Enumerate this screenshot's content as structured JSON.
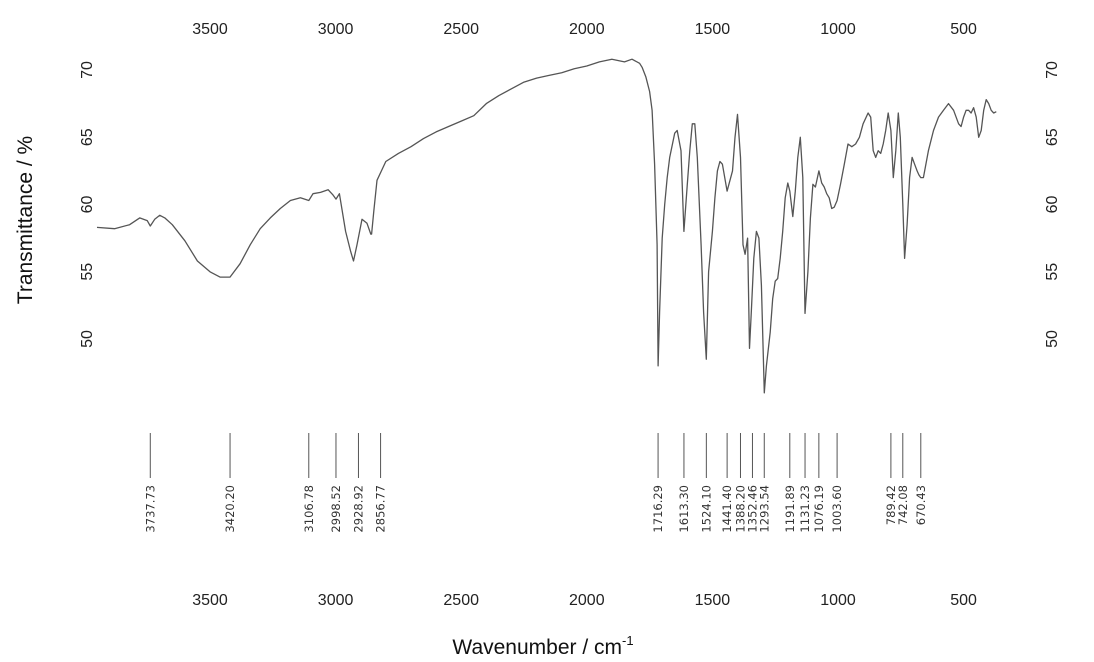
{
  "chart_data": {
    "type": "line",
    "title": "",
    "xlabel": "Wavenumber / cm",
    "xlabel_sup": "-1",
    "ylabel": "Transmittance / %",
    "xlim": [
      3950,
      370
    ],
    "ylim": [
      40,
      71
    ],
    "x_ticks": [
      3500,
      3000,
      2500,
      2000,
      1500,
      1000,
      500
    ],
    "y_ticks": [
      50,
      55,
      60,
      65,
      70
    ],
    "grid": false,
    "legend": "none",
    "line_color": "#555555",
    "series": [
      {
        "x": [
          3950,
          3880,
          3820,
          3780,
          3750,
          3737.73,
          3720,
          3700,
          3680,
          3650,
          3600,
          3550,
          3500,
          3460,
          3420.2,
          3380,
          3340,
          3300,
          3260,
          3220,
          3180,
          3140,
          3106.78,
          3090,
          3060,
          3030,
          3010,
          2998.52,
          2985,
          2960,
          2940,
          2928.92,
          2915,
          2895,
          2875,
          2860,
          2856.77,
          2848,
          2835,
          2800,
          2750,
          2700,
          2650,
          2600,
          2550,
          2500,
          2450,
          2400,
          2350,
          2300,
          2250,
          2200,
          2150,
          2100,
          2050,
          2000,
          1950,
          1900,
          1850,
          1820,
          1790,
          1780,
          1765,
          1750,
          1740,
          1730,
          1720,
          1716.29,
          1710,
          1700,
          1690,
          1680,
          1670,
          1650,
          1640,
          1625,
          1613.3,
          1600,
          1590,
          1580,
          1570,
          1560,
          1545,
          1535,
          1524.1,
          1515,
          1500,
          1490,
          1480,
          1470,
          1460,
          1441.4,
          1420,
          1410,
          1400,
          1388.2,
          1378,
          1370,
          1360,
          1352.46,
          1345,
          1335,
          1325,
          1315,
          1305,
          1293.54,
          1285,
          1270,
          1260,
          1250,
          1240,
          1230,
          1220,
          1210,
          1200,
          1191.89,
          1180,
          1170,
          1160,
          1150,
          1140,
          1131.23,
          1120,
          1110,
          1100,
          1090,
          1076.19,
          1065,
          1055,
          1045,
          1035,
          1025,
          1015,
          1003.6,
          990,
          975,
          960,
          945,
          930,
          915,
          900,
          880,
          870,
          860,
          850,
          840,
          830,
          820,
          810,
          800,
          789.42,
          780,
          770,
          760,
          752,
          742.08,
          735,
          725,
          715,
          705,
          695,
          685,
          678,
          670.43,
          660,
          640,
          620,
          600,
          580,
          560,
          540,
          520,
          510,
          500,
          490,
          480,
          470,
          460,
          450,
          440,
          430,
          420,
          410,
          400,
          390,
          380,
          370
        ],
        "y": [
          58.3,
          58.2,
          58.5,
          59.0,
          58.8,
          58.4,
          58.9,
          59.2,
          59.0,
          58.5,
          57.3,
          55.8,
          55.0,
          54.6,
          54.6,
          55.6,
          57.0,
          58.2,
          59.0,
          59.7,
          60.3,
          60.5,
          60.3,
          60.8,
          60.9,
          61.1,
          60.7,
          60.4,
          60.8,
          58.0,
          56.5,
          55.8,
          57.0,
          58.9,
          58.6,
          57.8,
          57.8,
          59.5,
          61.8,
          63.2,
          63.8,
          64.3,
          64.9,
          65.4,
          65.8,
          66.2,
          66.6,
          67.5,
          68.1,
          68.6,
          69.1,
          69.4,
          69.6,
          69.8,
          70.1,
          70.3,
          70.6,
          70.8,
          70.6,
          70.8,
          70.5,
          70.2,
          69.5,
          68.4,
          67.0,
          63.0,
          57.0,
          48.0,
          52.0,
          57.5,
          60.0,
          62.0,
          63.5,
          65.3,
          65.5,
          64.0,
          58.0,
          61.5,
          64.0,
          66.0,
          66.0,
          63.5,
          57.0,
          52.0,
          48.5,
          55.0,
          58.0,
          60.5,
          62.5,
          63.2,
          63.0,
          61.0,
          62.5,
          65.0,
          66.7,
          63.5,
          57.0,
          56.3,
          57.5,
          49.3,
          52.0,
          56.0,
          58.0,
          57.5,
          54.0,
          46.0,
          48.0,
          50.5,
          53.0,
          54.3,
          54.5,
          56.0,
          58.0,
          60.5,
          61.6,
          61.0,
          59.1,
          61.0,
          63.5,
          65.0,
          62.0,
          51.9,
          55.0,
          59.0,
          61.5,
          61.3,
          62.5,
          61.6,
          61.3,
          60.8,
          60.5,
          59.7,
          59.8,
          60.3,
          61.5,
          63.0,
          64.5,
          64.3,
          64.5,
          65.0,
          66.0,
          66.8,
          66.5,
          64.0,
          63.5,
          64.0,
          63.8,
          64.5,
          65.5,
          66.8,
          65.5,
          62.0,
          64.0,
          66.8,
          65.0,
          60.0,
          56.0,
          58.5,
          62.0,
          63.5,
          63.0,
          62.5,
          62.2,
          62.0,
          62.0,
          64.0,
          65.5,
          66.5,
          67.0,
          67.5,
          67.0,
          66.0,
          65.8,
          66.5,
          67.0,
          67.0,
          66.8,
          67.2,
          66.5,
          65.0,
          65.5,
          67.0,
          67.8,
          67.5,
          67.0,
          66.8,
          66.9
        ]
      }
    ],
    "peak_labels": [
      "3737.73",
      "3420.20",
      "3106.78",
      "2998.52",
      "2928.92",
      "2856.77",
      "1716.29",
      "1613.30",
      "1524.10",
      "1441.40",
      "1388.20",
      "1352.46",
      "1293.54",
      "1191.89",
      "1131.23",
      "1076.19",
      "1003.60",
      "789.42",
      "742.08",
      "670.43"
    ]
  }
}
